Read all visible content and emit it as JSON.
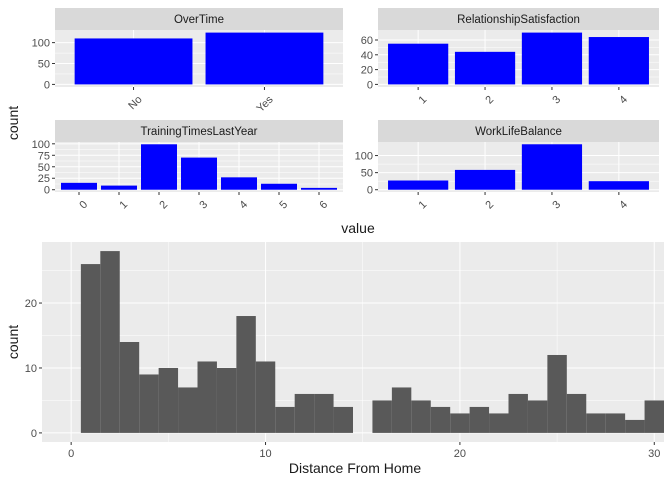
{
  "colors": {
    "panel_bg": "#EBEBEB",
    "grid_major": "#FFFFFF",
    "strip_bg": "#D9D9D9",
    "bar_fill": "#0000FF",
    "hist_fill": "#595959",
    "tick_text": "#4D4D4D",
    "title_text": "#1A1A1A"
  },
  "chart_data": [
    {
      "type": "bar",
      "layout": "facet-wrap",
      "facet_columns": 2,
      "xlabel": "value",
      "ylabel": "count",
      "grid": true,
      "facets": [
        {
          "title": "OverTime",
          "categories": [
            "No",
            "Yes"
          ],
          "values": [
            110,
            124
          ],
          "ylim": [
            0,
            124
          ],
          "yticks": [
            0,
            50,
            100
          ],
          "xtick_rotation": 45
        },
        {
          "title": "RelationshipSatisfaction",
          "categories": [
            "1",
            "2",
            "3",
            "4"
          ],
          "values": [
            55,
            44,
            70,
            64
          ],
          "ylim": [
            0,
            70
          ],
          "yticks": [
            0,
            20,
            40,
            60
          ],
          "xtick_rotation": 45
        },
        {
          "title": "TrainingTimesLastYear",
          "categories": [
            "0",
            "1",
            "2",
            "3",
            "4",
            "5",
            "6"
          ],
          "values": [
            15,
            9,
            99,
            70,
            27,
            13,
            4
          ],
          "ylim": [
            0,
            99
          ],
          "yticks": [
            0,
            25,
            50,
            75,
            100
          ],
          "xtick_rotation": 45
        },
        {
          "title": "WorkLifeBalance",
          "categories": [
            "1",
            "2",
            "3",
            "4"
          ],
          "values": [
            27,
            58,
            133,
            25
          ],
          "ylim": [
            0,
            133
          ],
          "yticks": [
            0,
            50,
            100
          ],
          "xtick_rotation": 45
        }
      ]
    },
    {
      "type": "bar",
      "subtype": "histogram",
      "xlabel": "Distance From Home",
      "ylabel": "count",
      "grid": true,
      "xlim": [
        -1.5,
        30.5
      ],
      "ylim": [
        -1.4,
        29.4
      ],
      "xticks": [
        0,
        10,
        20,
        30
      ],
      "yticks": [
        0,
        10,
        20
      ],
      "bin_width": 1,
      "bins": [
        {
          "x": 1,
          "count": 26
        },
        {
          "x": 2,
          "count": 28
        },
        {
          "x": 3,
          "count": 14
        },
        {
          "x": 4,
          "count": 9
        },
        {
          "x": 5,
          "count": 10
        },
        {
          "x": 6,
          "count": 7
        },
        {
          "x": 7,
          "count": 11
        },
        {
          "x": 8,
          "count": 10
        },
        {
          "x": 9,
          "count": 18
        },
        {
          "x": 10,
          "count": 11
        },
        {
          "x": 11,
          "count": 4
        },
        {
          "x": 12,
          "count": 6
        },
        {
          "x": 13,
          "count": 6
        },
        {
          "x": 14,
          "count": 4
        },
        {
          "x": 15,
          "count": 0
        },
        {
          "x": 16,
          "count": 5
        },
        {
          "x": 17,
          "count": 7
        },
        {
          "x": 18,
          "count": 5
        },
        {
          "x": 19,
          "count": 4
        },
        {
          "x": 20,
          "count": 3
        },
        {
          "x": 21,
          "count": 4
        },
        {
          "x": 22,
          "count": 3
        },
        {
          "x": 23,
          "count": 6
        },
        {
          "x": 24,
          "count": 5
        },
        {
          "x": 25,
          "count": 12
        },
        {
          "x": 26,
          "count": 6
        },
        {
          "x": 27,
          "count": 3
        },
        {
          "x": 28,
          "count": 3
        },
        {
          "x": 29,
          "count": 2
        },
        {
          "x": 30,
          "count": 5
        }
      ]
    }
  ]
}
